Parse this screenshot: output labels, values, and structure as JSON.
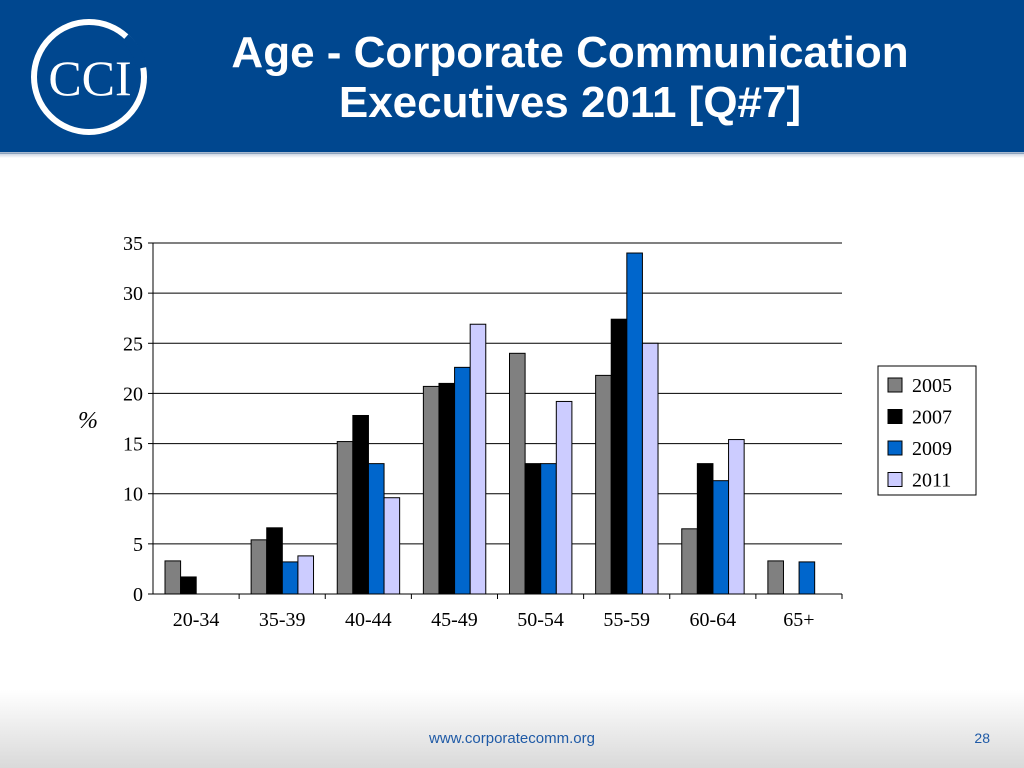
{
  "slide": {
    "title": "Age - Corporate Communication Executives 2011 [Q#7]",
    "logo_text": "CCI",
    "footer_url": "www.corporatecomm.org",
    "page_number": "28"
  },
  "colors": {
    "header": "#00478f",
    "series_2005": "#808080",
    "series_2007": "#000000",
    "series_2009": "#0066cc",
    "series_2011": "#ccccff"
  },
  "chart_data": {
    "type": "bar",
    "title": "",
    "xlabel": "",
    "ylabel": "%",
    "ylim": [
      0,
      35
    ],
    "yticks": [
      0,
      5,
      10,
      15,
      20,
      25,
      30,
      35
    ],
    "grid": true,
    "legend_position": "right",
    "categories": [
      "20-34",
      "35-39",
      "40-44",
      "45-49",
      "50-54",
      "55-59",
      "60-64",
      "65+"
    ],
    "series": [
      {
        "name": "2005",
        "color": "#808080",
        "values": [
          3.3,
          5.4,
          15.2,
          20.7,
          24.0,
          21.8,
          6.5,
          3.3
        ]
      },
      {
        "name": "2007",
        "color": "#000000",
        "values": [
          1.7,
          6.6,
          17.8,
          21.0,
          13.0,
          27.4,
          13.0,
          0
        ]
      },
      {
        "name": "2009",
        "color": "#0066cc",
        "values": [
          0,
          3.2,
          13.0,
          22.6,
          13.0,
          34.0,
          11.3,
          3.2
        ]
      },
      {
        "name": "2011",
        "color": "#ccccff",
        "values": [
          0,
          3.8,
          9.6,
          26.9,
          19.2,
          25.0,
          15.4,
          0
        ]
      }
    ]
  }
}
